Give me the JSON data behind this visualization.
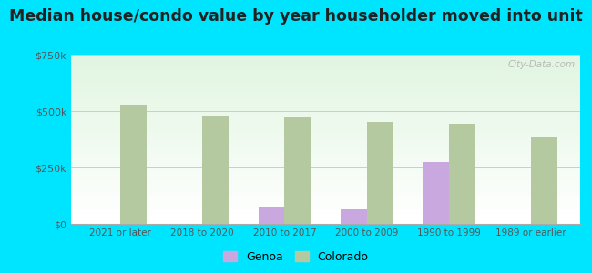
{
  "title": "Median house/condo value by year householder moved into unit",
  "categories": [
    "2021 or later",
    "2018 to 2020",
    "2010 to 2017",
    "2000 to 2009",
    "1990 to 1999",
    "1989 or earlier"
  ],
  "genoa_values": [
    0,
    0,
    75000,
    65000,
    275000,
    0
  ],
  "colorado_values": [
    530000,
    480000,
    470000,
    450000,
    445000,
    385000
  ],
  "genoa_color": "#c9a8e0",
  "colorado_color": "#b5c9a0",
  "background_color": "#00e5ff",
  "ylim": [
    0,
    750000
  ],
  "yticks": [
    0,
    250000,
    500000,
    750000
  ],
  "ytick_labels": [
    "$0",
    "$250k",
    "$500k",
    "$750k"
  ],
  "bar_width": 0.32,
  "title_fontsize": 12.5,
  "watermark": "City-Data.com"
}
